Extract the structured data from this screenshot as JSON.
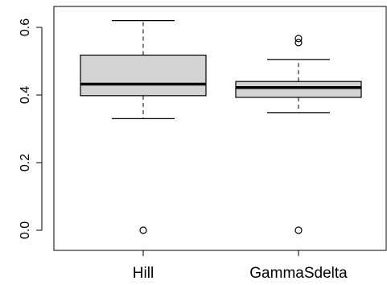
{
  "chart_data": {
    "type": "box",
    "title": "",
    "xlabel": "",
    "ylabel": "",
    "ylim": [
      -0.03,
      0.65
    ],
    "yticks": [
      0.0,
      0.2,
      0.4,
      0.6
    ],
    "ytick_labels": [
      "0.0",
      "0.2",
      "0.4",
      "0.6"
    ],
    "categories": [
      "Hill",
      "GammaSdelta"
    ],
    "boxes": [
      {
        "name": "Hill",
        "whisker_low": 0.33,
        "q1": 0.398,
        "median": 0.432,
        "q3": 0.518,
        "whisker_high": 0.62,
        "outliers": [
          0.0
        ]
      },
      {
        "name": "GammaSdelta",
        "whisker_low": 0.348,
        "q1": 0.393,
        "median": 0.422,
        "q3": 0.44,
        "whisker_high": 0.505,
        "outliers": [
          0.555,
          0.567,
          0.0
        ]
      }
    ],
    "box_fill": "#d3d3d3",
    "stroke": "#000000",
    "grid": false,
    "legend": "none"
  }
}
